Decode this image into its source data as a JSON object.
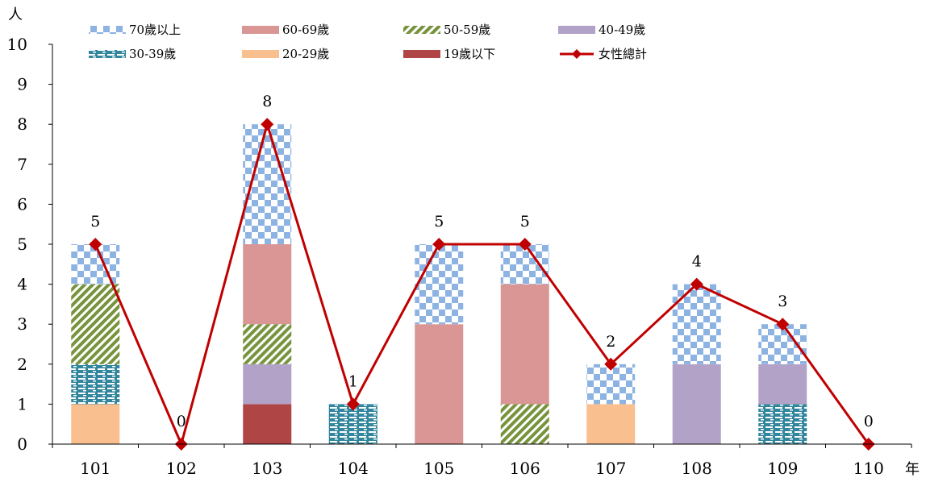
{
  "chart_data": {
    "type": "bar",
    "stacked": true,
    "y_unit": "人",
    "x_unit": "年",
    "ylim": [
      0,
      10
    ],
    "y_ticks": [
      "0",
      "1",
      "2",
      "3",
      "4",
      "5",
      "6",
      "7",
      "8",
      "9",
      "10"
    ],
    "categories": [
      "101",
      "102",
      "103",
      "104",
      "105",
      "106",
      "107",
      "108",
      "109",
      "110"
    ],
    "series": [
      {
        "name": "19歲以下",
        "values": [
          0,
          0,
          1,
          0,
          0,
          0,
          0,
          0,
          0,
          0
        ],
        "color": "#b04545",
        "pattern": "solid"
      },
      {
        "name": "20-29歲",
        "values": [
          1,
          0,
          0,
          0,
          0,
          0,
          1,
          0,
          0,
          0
        ],
        "color": "#f9bf8f",
        "pattern": "solid"
      },
      {
        "name": "30-39歲",
        "values": [
          1,
          0,
          0,
          1,
          0,
          0,
          0,
          0,
          1,
          0
        ],
        "color": "#31859c",
        "pattern": "brick"
      },
      {
        "name": "40-49歲",
        "values": [
          0,
          0,
          1,
          0,
          0,
          0,
          0,
          2,
          1,
          0
        ],
        "color": "#b3a2c7",
        "pattern": "solid"
      },
      {
        "name": "50-59歲",
        "values": [
          2,
          0,
          1,
          0,
          0,
          1,
          0,
          0,
          0,
          0
        ],
        "color": "#77933c",
        "pattern": "diagonal"
      },
      {
        "name": "60-69歲",
        "values": [
          0,
          0,
          2,
          0,
          3,
          3,
          0,
          0,
          0,
          0
        ],
        "color": "#d99694",
        "pattern": "solid"
      },
      {
        "name": "70歲以上",
        "values": [
          1,
          0,
          3,
          0,
          2,
          1,
          1,
          2,
          1,
          0
        ],
        "color": "#8db3e2",
        "pattern": "checker"
      }
    ],
    "line_series": {
      "name": "女性總計",
      "values": [
        5,
        0,
        8,
        1,
        5,
        5,
        2,
        4,
        3,
        0
      ],
      "color": "#c00000",
      "marker": "diamond"
    },
    "data_labels": [
      "5",
      "0",
      "8",
      "1",
      "5",
      "5",
      "2",
      "4",
      "3",
      "0"
    ],
    "legend": {
      "position": "top",
      "order": [
        "70歲以上",
        "60-69歲",
        "50-59歲",
        "40-49歲",
        "30-39歲",
        "20-29歲",
        "19歲以下",
        "女性總計"
      ]
    },
    "grid": false
  }
}
